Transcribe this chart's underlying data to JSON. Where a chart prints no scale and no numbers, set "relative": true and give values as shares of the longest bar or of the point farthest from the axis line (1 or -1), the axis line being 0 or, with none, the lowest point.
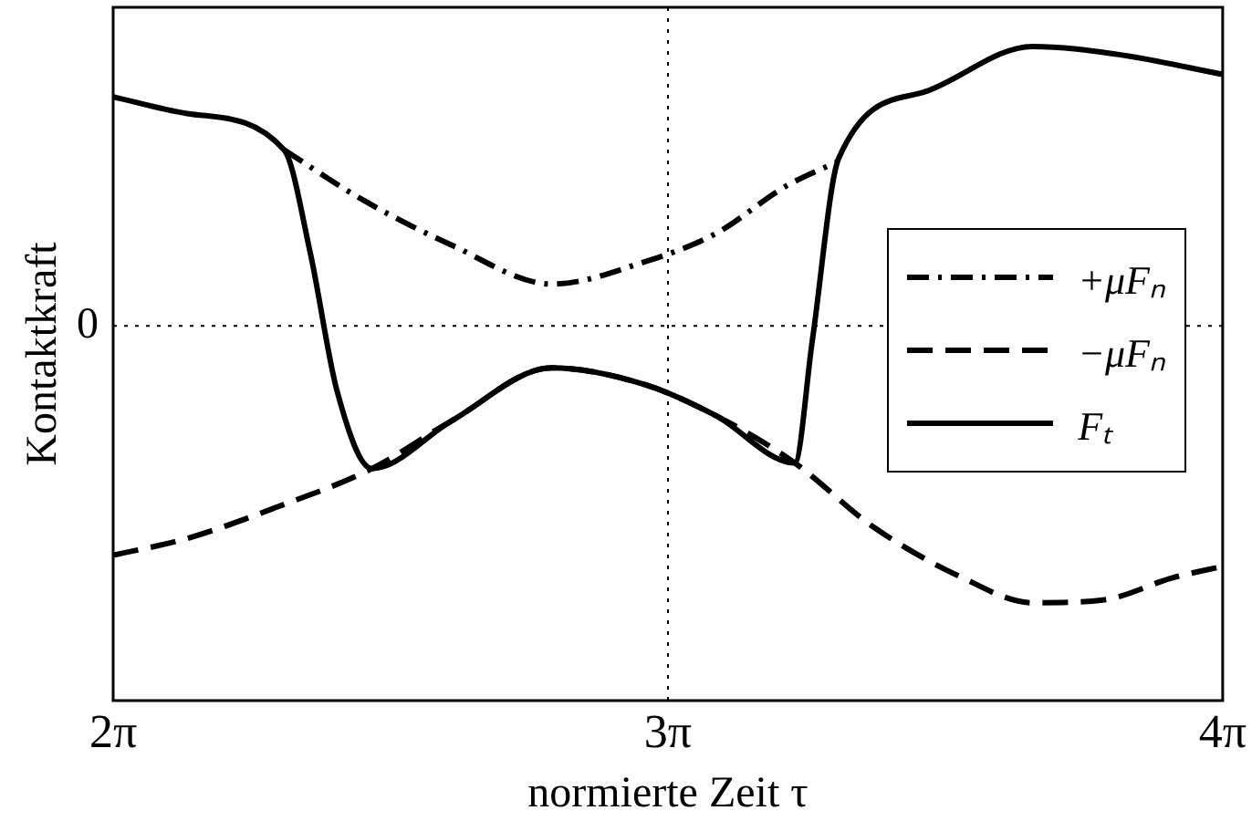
{
  "chart_data": {
    "type": "line",
    "relative": true,
    "xlabel": "normierte Zeit τ",
    "ylabel": "Kontaktkraft",
    "xlim": [
      6.2832,
      12.5664
    ],
    "xticks": [
      {
        "value": 6.2832,
        "label": "2π"
      },
      {
        "value": 9.4248,
        "label": "3π"
      },
      {
        "value": 12.5664,
        "label": "4π"
      }
    ],
    "grid": "x",
    "legend": "right",
    "marker": "none",
    "ref_lines": [
      {
        "axis": "y",
        "value": 0,
        "label": "0",
        "line_style": "dotted",
        "color": "#000000"
      }
    ],
    "series": [
      {
        "name": "+μFₙ",
        "color": "#000000",
        "line_style": "dashdot",
        "x": [
          7.251,
          7.7,
          8.198,
          8.767,
          9.295,
          9.694,
          10.093,
          10.392
        ],
        "values": [
          0.63,
          0.45,
          0.29,
          0.15,
          0.23,
          0.33,
          0.5,
          0.59
        ]
      },
      {
        "name": "−μFₙ",
        "color": "#000000",
        "line_style": "dashed",
        "x": [
          6.2832,
          6.702,
          7.201,
          7.749,
          8.198,
          8.767,
          9.295,
          9.694,
          10.143,
          10.591,
          11.091,
          11.489,
          11.888,
          12.287,
          12.5664
        ],
        "values": [
          -0.82,
          -0.76,
          -0.65,
          -0.51,
          -0.34,
          -0.15,
          -0.21,
          -0.32,
          -0.49,
          -0.72,
          -0.9,
          -0.99,
          -0.98,
          -0.9,
          -0.86
        ]
      },
      {
        "name": "Fₜ",
        "color": "#000000",
        "line_style": "solid",
        "x": [
          6.2832,
          6.702,
          7.251,
          7.4,
          7.55,
          7.749,
          8.198,
          8.767,
          9.295,
          9.694,
          10.143,
          10.243,
          10.392,
          10.891,
          11.489,
          11.988,
          12.5664
        ],
        "values": [
          0.82,
          0.76,
          0.63,
          0.26,
          -0.23,
          -0.51,
          -0.34,
          -0.15,
          -0.21,
          -0.32,
          -0.49,
          -0.05,
          0.6,
          0.84,
          1.0,
          0.97,
          0.9
        ]
      }
    ]
  }
}
